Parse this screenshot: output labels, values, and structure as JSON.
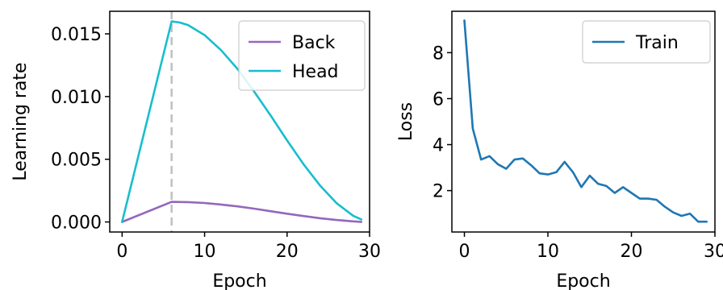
{
  "chart_data": [
    {
      "type": "line",
      "xlabel": "Epoch",
      "ylabel": "Learning rate",
      "xlim": [
        -1.5,
        30
      ],
      "ylim": [
        -0.0008,
        0.0168
      ],
      "xticks": [
        0,
        10,
        20,
        30
      ],
      "xtick_labels": [
        "0",
        "10",
        "20",
        "30"
      ],
      "yticks": [
        0.0,
        0.005,
        0.01,
        0.015
      ],
      "ytick_labels": [
        "0.000",
        "0.005",
        "0.010",
        "0.015"
      ],
      "grid": false,
      "legend": "top-right",
      "vline": {
        "x": 6,
        "color": "#c0c0c0",
        "style": "dashed"
      },
      "series": [
        {
          "name": "Back",
          "color": "#9467bd",
          "x": [
            0,
            6,
            8,
            10,
            12,
            14,
            16,
            18,
            20,
            22,
            24,
            26,
            28,
            29
          ],
          "values": [
            0.0,
            0.0016,
            0.00158,
            0.00151,
            0.00139,
            0.00124,
            0.00106,
            0.00086,
            0.00066,
            0.00047,
            0.0003,
            0.00016,
            5e-05,
            1e-05
          ]
        },
        {
          "name": "Head",
          "color": "#17becf",
          "x": [
            0,
            6,
            7,
            8,
            10,
            12,
            14,
            16,
            18,
            20,
            22,
            24,
            26,
            28,
            29
          ],
          "values": [
            0.0,
            0.016,
            0.0159,
            0.0157,
            0.0149,
            0.0137,
            0.0122,
            0.0104,
            0.0085,
            0.0065,
            0.0046,
            0.0029,
            0.0015,
            0.0005,
            0.0002
          ]
        }
      ]
    },
    {
      "type": "line",
      "xlabel": "Epoch",
      "ylabel": "Loss",
      "xlim": [
        -1.5,
        30
      ],
      "ylim": [
        0.2,
        9.8
      ],
      "xticks": [
        0,
        10,
        20,
        30
      ],
      "xtick_labels": [
        "0",
        "10",
        "20",
        "30"
      ],
      "yticks": [
        2,
        4,
        6,
        8
      ],
      "ytick_labels": [
        "2",
        "4",
        "6",
        "8"
      ],
      "grid": false,
      "legend": "top-right",
      "series": [
        {
          "name": "Train",
          "color": "#1f77b4",
          "x": [
            0,
            1,
            2,
            3,
            4,
            5,
            6,
            7,
            8,
            9,
            10,
            11,
            12,
            13,
            14,
            15,
            16,
            17,
            18,
            19,
            20,
            21,
            22,
            23,
            24,
            25,
            26,
            27,
            28,
            29
          ],
          "values": [
            9.4,
            4.7,
            3.35,
            3.5,
            3.15,
            2.95,
            3.35,
            3.4,
            3.1,
            2.75,
            2.7,
            2.8,
            3.25,
            2.8,
            2.15,
            2.65,
            2.3,
            2.2,
            1.9,
            2.15,
            1.9,
            1.65,
            1.65,
            1.6,
            1.3,
            1.05,
            0.9,
            1.0,
            0.65,
            0.65
          ]
        }
      ]
    }
  ]
}
